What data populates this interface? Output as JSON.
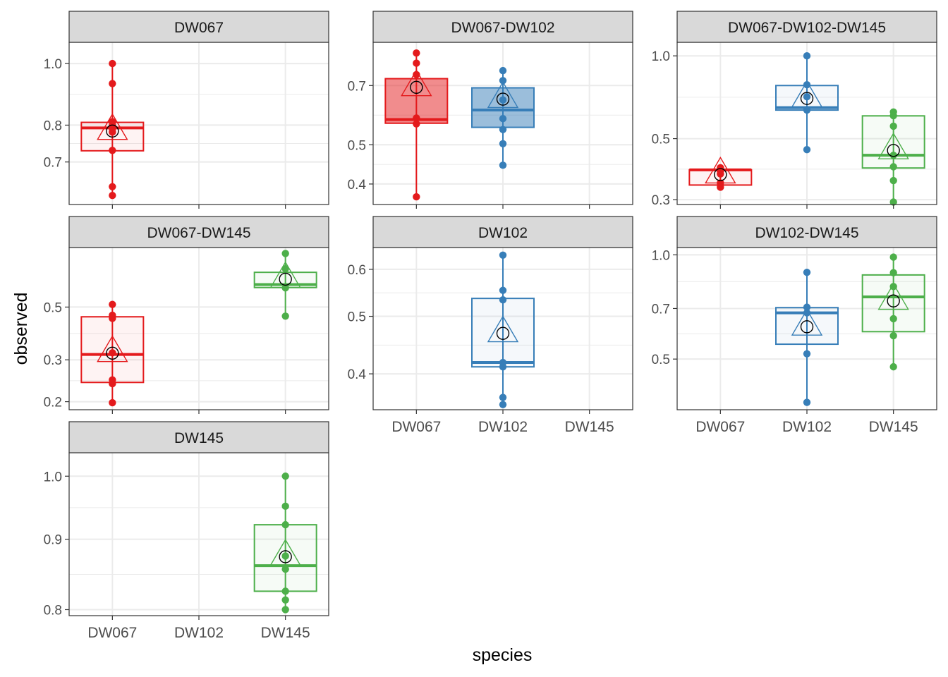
{
  "figure": {
    "xlabel": "species",
    "ylabel": "observed"
  },
  "colors": {
    "DW067": "#E41A1C",
    "DW102": "#377EB8",
    "DW145": "#4DAF4A",
    "panel_border": "#333333",
    "strip_fill": "#D9D9D9",
    "grid": "#EBEBEB",
    "axis_text": "#4D4D4D"
  },
  "chart_data": [
    {
      "type": "box",
      "title": "DW067",
      "y_scale": "log",
      "ylim": [
        0.6,
        1.08
      ],
      "y_ticks": [
        0.7,
        0.8,
        1.0
      ],
      "y_tick_labels": [
        "0.7",
        "0.8",
        "1.0"
      ],
      "categories": [
        "DW067",
        "DW102",
        "DW145"
      ],
      "x_tick_labels": [],
      "series": [
        {
          "name": "DW067",
          "q1": 0.729,
          "median": 0.792,
          "q3": 0.808,
          "whisker_low": 0.62,
          "whisker_high": 1.0,
          "points": [
            1.0,
            0.93,
            0.81,
            0.8,
            0.79,
            0.78,
            0.73,
            0.64,
            0.62
          ],
          "mean": 0.783,
          "alpha_fill": 0.05
        }
      ]
    },
    {
      "type": "box",
      "title": "DW067-DW102",
      "y_scale": "log",
      "ylim": [
        0.356,
        0.895
      ],
      "y_ticks": [
        0.4,
        0.5,
        0.7
      ],
      "y_tick_labels": [
        "0.4",
        "0.5",
        "0.7"
      ],
      "categories": [
        "DW067",
        "DW102",
        "DW145"
      ],
      "x_tick_labels": [],
      "series": [
        {
          "name": "DW067",
          "q1": 0.565,
          "median": 0.577,
          "q3": 0.728,
          "whisker_low": 0.372,
          "whisker_high": 0.842,
          "points": [
            0.842,
            0.795,
            0.745,
            0.582,
            0.563,
            0.372
          ],
          "mean": 0.693,
          "alpha_fill": 0.5
        },
        {
          "name": "DW102",
          "q1": 0.552,
          "median": 0.609,
          "q3": 0.691,
          "whisker_low": 0.445,
          "whisker_high": 0.762,
          "points": [
            0.762,
            0.72,
            0.645,
            0.58,
            0.545,
            0.503,
            0.445
          ],
          "mean": 0.648,
          "alpha_fill": 0.5
        }
      ]
    },
    {
      "type": "box",
      "title": "DW067-DW102-DW145",
      "y_scale": "log",
      "ylim": [
        0.288,
        1.12
      ],
      "y_ticks": [
        0.3,
        0.5,
        1.0
      ],
      "y_tick_labels": [
        "0.3",
        "0.5",
        "1.0"
      ],
      "categories": [
        "DW067",
        "DW102",
        "DW145"
      ],
      "x_tick_labels": [],
      "series": [
        {
          "name": "DW067",
          "q1": 0.339,
          "median": 0.385,
          "q3": 0.385,
          "whisker_low": 0.331,
          "whisker_high": 0.392,
          "points": [
            0.392,
            0.381,
            0.372,
            0.345,
            0.333
          ],
          "mean": 0.37,
          "alpha_fill": 0.05
        },
        {
          "name": "DW102",
          "q1": 0.635,
          "median": 0.648,
          "q3": 0.78,
          "whisker_low": 0.456,
          "whisker_high": 1.0,
          "points": [
            1.0,
            0.785,
            0.71,
            0.635,
            0.456
          ],
          "mean": 0.7,
          "alpha_fill": 0.05
        },
        {
          "name": "DW145",
          "q1": 0.391,
          "median": 0.435,
          "q3": 0.605,
          "whisker_low": 0.294,
          "whisker_high": 0.625,
          "points": [
            0.625,
            0.606,
            0.555,
            0.435,
            0.395,
            0.352,
            0.294
          ],
          "mean": 0.453,
          "alpha_fill": 0.05
        }
      ]
    },
    {
      "type": "box",
      "title": "DW067-DW145",
      "y_scale": "log",
      "ylim": [
        0.185,
        0.89
      ],
      "y_ticks": [
        0.2,
        0.3,
        0.5
      ],
      "y_tick_labels": [
        "0.2",
        "0.3",
        "0.5"
      ],
      "categories": [
        "DW067",
        "DW102",
        "DW145"
      ],
      "x_tick_labels": [],
      "series": [
        {
          "name": "DW067",
          "q1": 0.241,
          "median": 0.316,
          "q3": 0.455,
          "whisker_low": 0.198,
          "whisker_high": 0.513,
          "points": [
            0.513,
            0.462,
            0.448,
            0.321,
            0.247,
            0.238,
            0.198
          ],
          "mean": 0.32,
          "alpha_fill": 0.05
        },
        {
          "name": "DW145",
          "q1": 0.604,
          "median": 0.622,
          "q3": 0.7,
          "whisker_low": 0.458,
          "whisker_high": 0.84,
          "points": [
            0.84,
            0.725,
            0.602,
            0.458
          ],
          "mean": 0.655,
          "alpha_fill": 0.05
        }
      ]
    },
    {
      "type": "box",
      "title": "DW102",
      "y_scale": "log",
      "ylim": [
        0.348,
        0.653
      ],
      "y_ticks": [
        0.4,
        0.5,
        0.6
      ],
      "y_tick_labels": [
        "0.4",
        "0.5",
        "0.6"
      ],
      "categories": [
        "DW067",
        "DW102",
        "DW145"
      ],
      "x_tick_labels": [
        "DW067",
        "DW102",
        "DW145"
      ],
      "series": [
        {
          "name": "DW102",
          "q1": 0.411,
          "median": 0.418,
          "q3": 0.536,
          "whisker_low": 0.355,
          "whisker_high": 0.634,
          "points": [
            0.634,
            0.553,
            0.533,
            0.418,
            0.411,
            0.365,
            0.355
          ],
          "mean": 0.468,
          "alpha_fill": 0.05
        }
      ]
    },
    {
      "type": "box",
      "title": "DW102-DW145",
      "y_scale": "log",
      "ylim": [
        0.357,
        1.05
      ],
      "y_ticks": [
        0.5,
        0.7,
        1.0
      ],
      "y_tick_labels": [
        "0.5",
        "0.7",
        "1.0"
      ],
      "categories": [
        "DW067",
        "DW102",
        "DW145"
      ],
      "x_tick_labels": [
        "DW067",
        "DW102",
        "DW145"
      ],
      "series": [
        {
          "name": "DW102",
          "q1": 0.552,
          "median": 0.68,
          "q3": 0.704,
          "whisker_low": 0.375,
          "whisker_high": 0.89,
          "points": [
            0.89,
            0.706,
            0.68,
            0.518,
            0.375
          ],
          "mean": 0.62,
          "alpha_fill": 0.05
        },
        {
          "name": "DW145",
          "q1": 0.6,
          "median": 0.756,
          "q3": 0.875,
          "whisker_low": 0.475,
          "whisker_high": 0.985,
          "points": [
            0.985,
            0.888,
            0.81,
            0.654,
            0.584,
            0.475
          ],
          "mean": 0.736,
          "alpha_fill": 0.05
        }
      ]
    },
    {
      "type": "box",
      "title": "DW145",
      "y_scale": "log",
      "ylim": [
        0.792,
        1.04
      ],
      "y_ticks": [
        0.8,
        0.9,
        1.0
      ],
      "y_tick_labels": [
        "0.8",
        "0.9",
        "1.0"
      ],
      "categories": [
        "DW067",
        "DW102",
        "DW145"
      ],
      "x_tick_labels": [
        "DW067",
        "DW102",
        "DW145"
      ],
      "series": [
        {
          "name": "DW145",
          "q1": 0.825,
          "median": 0.861,
          "q3": 0.922,
          "whisker_low": 0.8,
          "whisker_high": 1.0,
          "points": [
            1.0,
            0.951,
            0.922,
            0.875,
            0.856,
            0.825,
            0.813,
            0.8
          ],
          "mean": 0.874,
          "alpha_fill": 0.05
        }
      ]
    }
  ]
}
